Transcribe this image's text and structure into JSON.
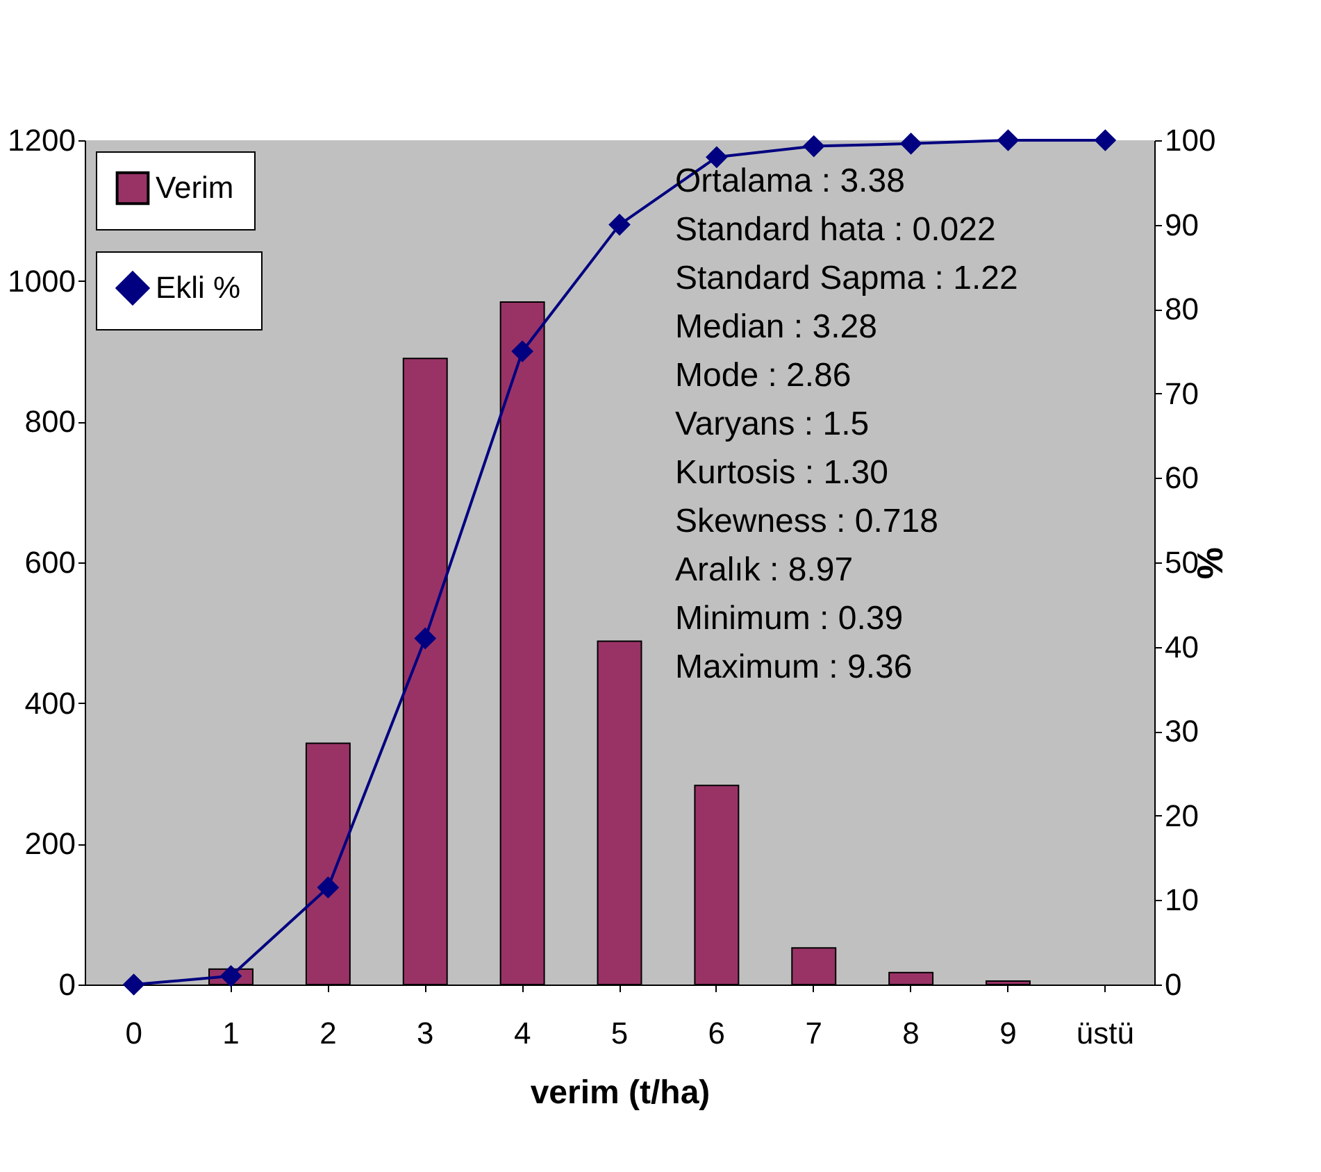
{
  "chart_data": {
    "type": "bar",
    "xlabel": "verim (t/ha)",
    "y2label": "%",
    "categories": [
      "0",
      "1",
      "2",
      "3",
      "4",
      "5",
      "6",
      "7",
      "8",
      "9",
      "üstü"
    ],
    "series": [
      {
        "name": "Verim",
        "color": "#993366",
        "values": [
          0,
          22,
          343,
          890,
          970,
          488,
          283,
          52,
          17,
          5,
          0
        ]
      },
      {
        "name": "Ekli %",
        "type": "line",
        "axis": "y2",
        "color": "#000080",
        "values": [
          0,
          1,
          11.5,
          41,
          75,
          90,
          98,
          99.3,
          99.6,
          100,
          100
        ]
      }
    ],
    "ylim": [
      0,
      1200
    ],
    "yticks": [
      0,
      200,
      400,
      600,
      800,
      1000,
      1200
    ],
    "y2lim": [
      0,
      100
    ],
    "y2ticks": [
      0,
      10,
      20,
      30,
      40,
      50,
      60,
      70,
      80,
      90,
      100
    ],
    "annotations": [
      "Ortalama : 3.38",
      "Standard hata : 0.022",
      "Standard Sapma : 1.22",
      "Median : 3.28",
      "Mode : 2.86",
      "Varyans : 1.5",
      "Kurtosis : 1.30",
      "Skewness : 0.718",
      "Aralık : 8.97",
      "Minimum : 0.39",
      "Maximum : 9.36"
    ],
    "legend": "top left",
    "marker": "diamond",
    "line_style": "solid",
    "grid": false
  }
}
